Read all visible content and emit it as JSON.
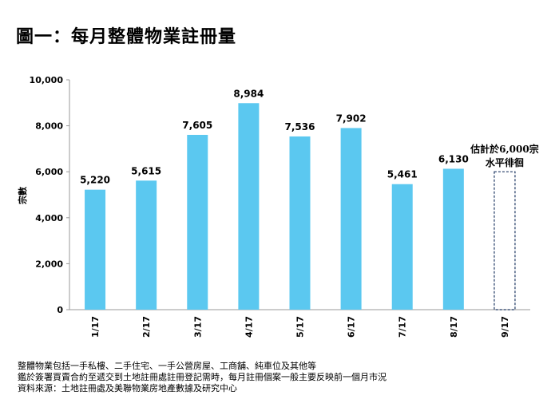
{
  "chart_data": {
    "type": "bar",
    "title": "圖一：每月整體物業註冊量",
    "xlabel": "",
    "ylabel": "宗數",
    "ylim": [
      0,
      10000
    ],
    "yticks": [
      "0",
      "2,000",
      "4,000",
      "6,000",
      "8,000",
      "10,000"
    ],
    "categories": [
      "1/17",
      "2/17",
      "3/17",
      "4/17",
      "5/17",
      "6/17",
      "7/17",
      "8/17",
      "9/17"
    ],
    "values": [
      5220,
      5615,
      7605,
      8984,
      7536,
      7902,
      5461,
      6130,
      6000
    ],
    "labels": [
      "5,220",
      "5,615",
      "7,605",
      "8,984",
      "7,536",
      "7,902",
      "5,461",
      "6,130",
      ""
    ],
    "estimated": [
      false,
      false,
      false,
      false,
      false,
      false,
      false,
      false,
      true
    ],
    "annotation": [
      "估計於6,000宗",
      "水平徘徊"
    ],
    "color": "#5BC8F0",
    "grid": false
  },
  "notes": [
    "整體物業包括一手私樓、二手住宅、一手公營房屋、工商舖、純車位及其他等",
    "鑑於簽署買賣合約至遞交到土地註冊處註冊登記需時，每月註冊個案一般主要反映前一個月市況",
    "資料來源：土地註冊處及美聯物業房地產數據及研究中心"
  ]
}
